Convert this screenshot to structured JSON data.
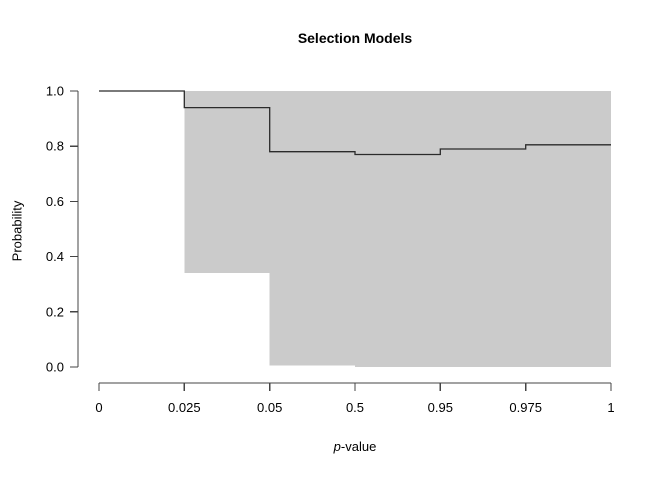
{
  "figure": {
    "title": "Selection Models",
    "ylabel": "Probability",
    "xlabel_italic": "p",
    "xlabel_rest": "-value"
  },
  "chart_data": {
    "type": "line",
    "subtype": "step-function-with-confidence-band",
    "title": "Selection Models",
    "xlabel": "p-value",
    "ylabel": "Probability",
    "x_axis": {
      "categories": [
        "0",
        "0.025",
        "0.05",
        "0.5",
        "0.95",
        "0.975",
        "1"
      ],
      "scale": "ordinal-equal-spacing"
    },
    "y_axis": {
      "ticks": [
        "0.0",
        "0.2",
        "0.4",
        "0.6",
        "0.8",
        "1.0"
      ],
      "range": [
        0,
        1
      ]
    },
    "segments": [
      {
        "from": "0",
        "to": "0.025",
        "estimate": 1.0,
        "ci_lower": null,
        "ci_upper": null
      },
      {
        "from": "0.025",
        "to": "0.05",
        "estimate": 0.94,
        "ci_lower": 0.34,
        "ci_upper": 1.0
      },
      {
        "from": "0.05",
        "to": "0.5",
        "estimate": 0.78,
        "ci_lower": 0.005,
        "ci_upper": 1.0
      },
      {
        "from": "0.5",
        "to": "0.95",
        "estimate": 0.77,
        "ci_lower": 0.0,
        "ci_upper": 1.0
      },
      {
        "from": "0.95",
        "to": "0.975",
        "estimate": 0.79,
        "ci_lower": 0.0,
        "ci_upper": 1.0
      },
      {
        "from": "0.975",
        "to": "1",
        "estimate": 0.805,
        "ci_lower": 0.0,
        "ci_upper": 1.0
      }
    ],
    "legend": null,
    "grid": false,
    "colors": {
      "band": "#cbcbcb",
      "line": "#2b2b2b",
      "axis": "#444444",
      "text": "#000000",
      "background": "#ffffff"
    }
  }
}
